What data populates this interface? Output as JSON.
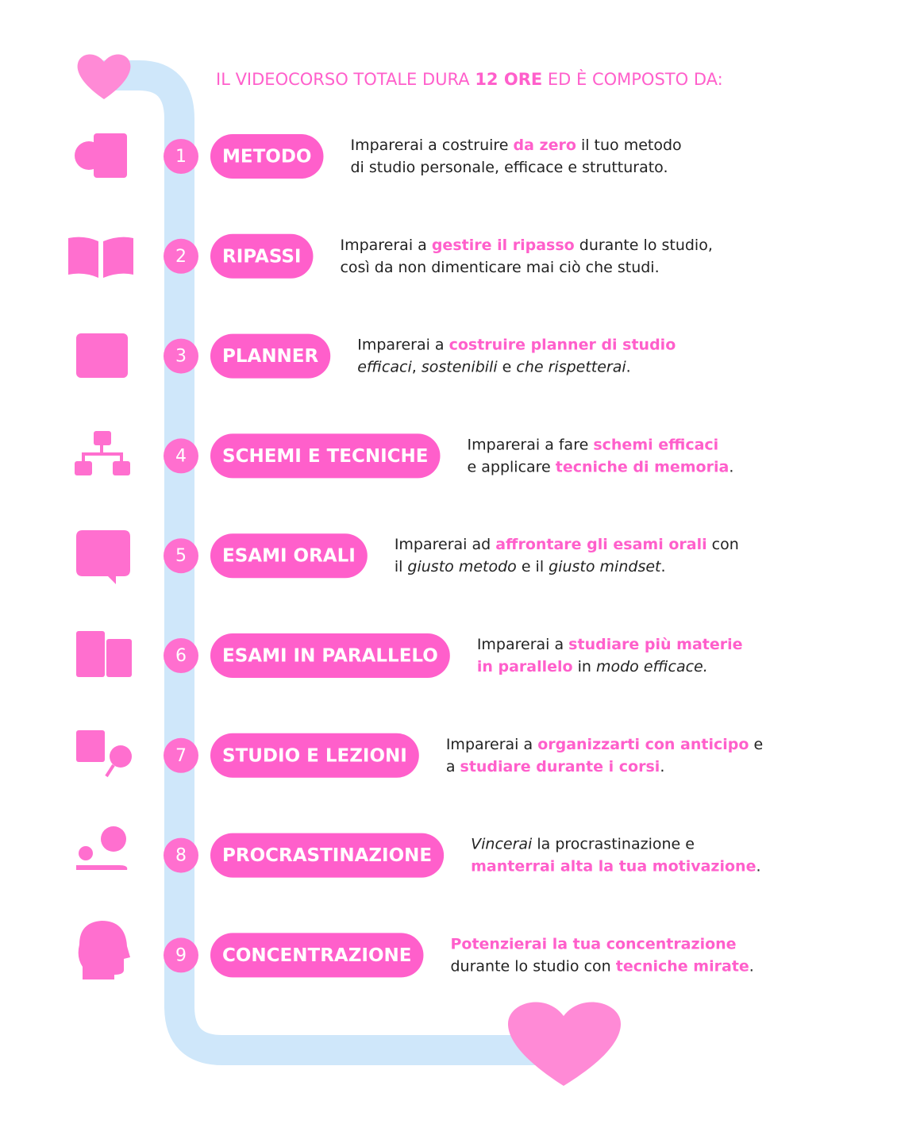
{
  "header": [
    {
      "text": "IL VIDEOCORSO TOTALE DURA "
    },
    {
      "text": "12 ORE",
      "style": "bold"
    },
    {
      "text": " ED È COMPOSTO DA:"
    }
  ],
  "accent_color": "#ff5fcb",
  "items": [
    {
      "number": 1,
      "label": "METODO",
      "description": [
        [
          {
            "text": "Imparerai a costruire "
          },
          {
            "text": "da zero",
            "style": "accent"
          },
          {
            "text": " il tuo metodo"
          }
        ],
        [
          {
            "text": "di studio personale, efficace e strutturato."
          }
        ]
      ]
    },
    {
      "number": 2,
      "label": "RIPASSI",
      "description": [
        [
          {
            "text": "Imparerai a "
          },
          {
            "text": "gestire il ripasso",
            "style": "accent"
          },
          {
            "text": " durante lo studio,"
          }
        ],
        [
          {
            "text": "così da non dimenticare mai ciò che studi."
          }
        ]
      ]
    },
    {
      "number": 3,
      "label": "PLANNER",
      "description": [
        [
          {
            "text": "Imparerai a "
          },
          {
            "text": "costruire planner di studio",
            "style": "accent"
          }
        ],
        [
          {
            "text": "efficaci",
            "style": "italic"
          },
          {
            "text": ", "
          },
          {
            "text": "sostenibili",
            "style": "italic"
          },
          {
            "text": " e "
          },
          {
            "text": "che rispetterai",
            "style": "italic"
          },
          {
            "text": "."
          }
        ]
      ]
    },
    {
      "number": 4,
      "label": "SCHEMI E TECNICHE",
      "description": [
        [
          {
            "text": "Imparerai a fare "
          },
          {
            "text": "schemi efficaci",
            "style": "accent"
          }
        ],
        [
          {
            "text": "e applicare "
          },
          {
            "text": "tecniche di memoria",
            "style": "accent"
          },
          {
            "text": "."
          }
        ]
      ]
    },
    {
      "number": 5,
      "label": "ESAMI ORALI",
      "description": [
        [
          {
            "text": "Imparerai ad "
          },
          {
            "text": "affrontare gli esami orali",
            "style": "accent"
          },
          {
            "text": " con"
          }
        ],
        [
          {
            "text": "il "
          },
          {
            "text": "giusto metodo",
            "style": "italic"
          },
          {
            "text": " e il "
          },
          {
            "text": "giusto mindset",
            "style": "italic"
          },
          {
            "text": "."
          }
        ]
      ]
    },
    {
      "number": 6,
      "label": "ESAMI IN PARALLELO",
      "description": [
        [
          {
            "text": "Imparerai a "
          },
          {
            "text": "studiare più materie",
            "style": "accent"
          }
        ],
        [
          {
            "text": "in parallelo",
            "style": "accent"
          },
          {
            "text": " in "
          },
          {
            "text": "modo efficace.",
            "style": "italic"
          }
        ]
      ]
    },
    {
      "number": 7,
      "label": "STUDIO E LEZIONI",
      "description": [
        [
          {
            "text": "Imparerai a "
          },
          {
            "text": "organizzarti con anticipo",
            "style": "accent"
          },
          {
            "text": " e"
          }
        ],
        [
          {
            "text": "a "
          },
          {
            "text": "studiare durante i corsi",
            "style": "accent"
          },
          {
            "text": "."
          }
        ]
      ]
    },
    {
      "number": 8,
      "label": "PROCRASTINAZIONE",
      "description": [
        [
          {
            "text": "Vincerai",
            "style": "italic"
          },
          {
            "text": " la procrastinazione e"
          }
        ],
        [
          {
            "text": "manterrai alta la tua motivazione",
            "style": "accent"
          },
          {
            "text": "."
          }
        ]
      ]
    },
    {
      "number": 9,
      "label": "CONCENTRAZIONE",
      "description": [
        [
          {
            "text": "Potenzierai la tua concentrazione",
            "style": "accent"
          }
        ],
        [
          {
            "text": "durante lo studio con "
          },
          {
            "text": "tecniche mirate",
            "style": "accent"
          },
          {
            "text": "."
          }
        ]
      ]
    }
  ]
}
